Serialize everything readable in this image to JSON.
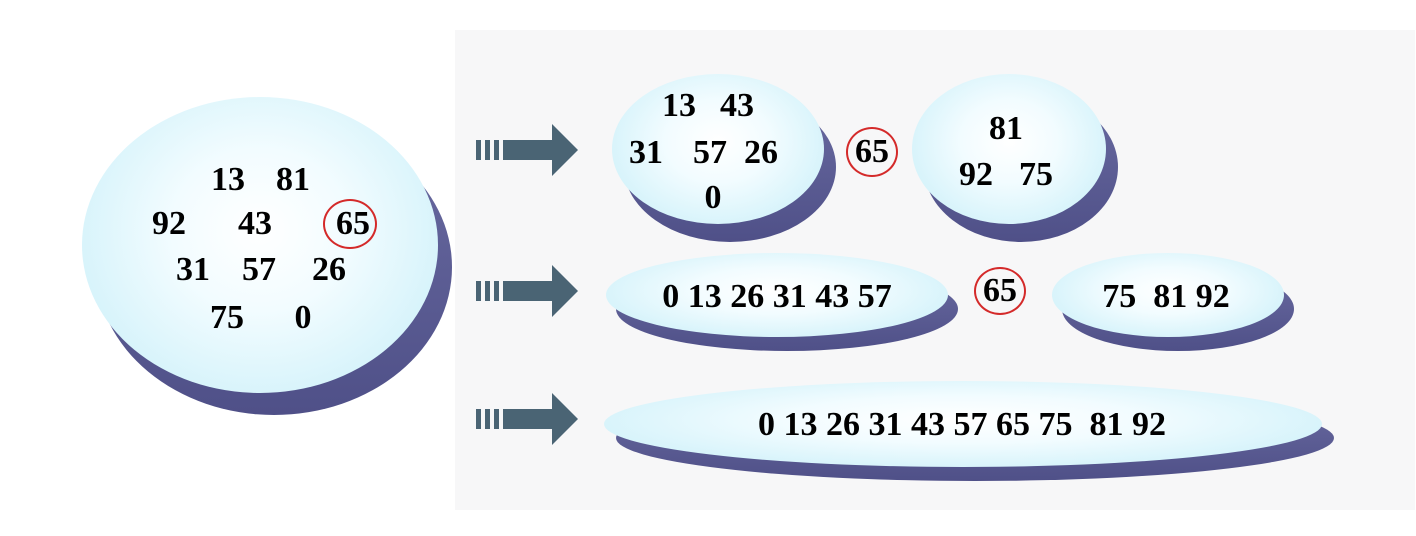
{
  "diagram": {
    "initial": {
      "values": [
        "13",
        "81",
        "92",
        "43",
        "65",
        "31",
        "57",
        "26",
        "75",
        "0"
      ],
      "pivot": "65"
    },
    "step1": {
      "left_values": [
        "13",
        "43",
        "31",
        "57",
        "26",
        "0"
      ],
      "pivot": "65",
      "right_values": [
        "81",
        "92",
        "75"
      ]
    },
    "step2": {
      "left_text": "0 13 26 31 43 57",
      "pivot": "65",
      "right_text": "75  81 92"
    },
    "step3": {
      "result_text": "0 13 26 31 43 57 65 75  81 92"
    },
    "colors": {
      "ellipse_fill": "#d9f4fb",
      "ellipse_shadow": "#5a5b93",
      "arrow": "#4a6474",
      "pivot_ring": "#d42a2a"
    },
    "icons": [
      "step-arrow-icon"
    ]
  }
}
